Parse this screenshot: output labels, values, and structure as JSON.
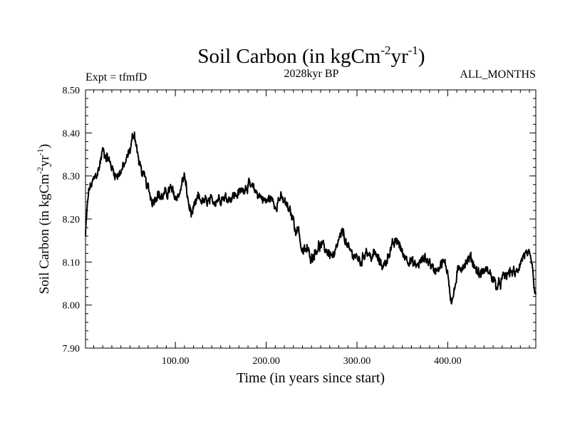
{
  "chart_data": {
    "type": "line",
    "title": "Soil Carbon (in kgCm",
    "title_sup1": "-2",
    "title_mid": "yr",
    "title_sup2": "-1",
    "title_end": ")",
    "subtitle_left": "Expt = tfmfD",
    "subtitle_center": "2028kyr BP",
    "subtitle_right": "ALL_MONTHS",
    "xlabel": "Time (in years since start)",
    "ylabel": "Soil Carbon (in kgCm",
    "ylabel_sup1": "-2",
    "ylabel_mid": "yr",
    "ylabel_sup2": "-1",
    "ylabel_end": ")",
    "xlim": [
      1,
      497
    ],
    "ylim": [
      7.9,
      8.5
    ],
    "xticks": [
      100,
      200,
      300,
      400
    ],
    "xtick_labels": [
      "100.00",
      "200.00",
      "300.00",
      "400.00"
    ],
    "yticks": [
      7.9,
      8.0,
      8.1,
      8.2,
      8.3,
      8.4,
      8.5
    ],
    "ytick_labels": [
      "7.90",
      "8.00",
      "8.10",
      "8.20",
      "8.30",
      "8.40",
      "8.50"
    ],
    "grid": false,
    "series": [
      {
        "name": "Soil Carbon",
        "x": [
          1,
          3,
          5,
          8,
          12,
          15,
          18,
          20,
          23,
          26,
          30,
          35,
          40,
          45,
          50,
          53,
          55,
          57,
          60,
          65,
          70,
          75,
          80,
          85,
          90,
          95,
          100,
          105,
          108,
          110,
          112,
          115,
          118,
          120,
          125,
          130,
          140,
          150,
          160,
          170,
          180,
          185,
          190,
          195,
          200,
          205,
          210,
          215,
          220,
          225,
          230,
          233,
          236,
          238,
          240,
          245,
          250,
          255,
          260,
          265,
          270,
          275,
          280,
          285,
          290,
          295,
          300,
          305,
          310,
          315,
          320,
          325,
          330,
          335,
          340,
          345,
          350,
          355,
          360,
          365,
          370,
          375,
          380,
          385,
          390,
          395,
          400,
          403,
          405,
          408,
          410,
          415,
          420,
          425,
          430,
          435,
          440,
          445,
          450,
          455,
          460,
          465,
          470,
          475,
          480,
          485,
          490,
          493,
          495,
          497
        ],
        "y": [
          8.16,
          8.23,
          8.27,
          8.28,
          8.3,
          8.31,
          8.34,
          8.36,
          8.35,
          8.34,
          8.32,
          8.3,
          8.31,
          8.33,
          8.36,
          8.39,
          8.4,
          8.37,
          8.33,
          8.3,
          8.27,
          8.24,
          8.26,
          8.25,
          8.26,
          8.27,
          8.25,
          8.26,
          8.29,
          8.3,
          8.27,
          8.23,
          8.21,
          8.22,
          8.25,
          8.24,
          8.24,
          8.25,
          8.25,
          8.26,
          8.28,
          8.27,
          8.26,
          8.25,
          8.24,
          8.25,
          8.23,
          8.25,
          8.24,
          8.22,
          8.2,
          8.17,
          8.18,
          8.14,
          8.12,
          8.13,
          8.11,
          8.13,
          8.14,
          8.13,
          8.12,
          8.11,
          8.15,
          8.17,
          8.13,
          8.12,
          8.11,
          8.1,
          8.13,
          8.11,
          8.12,
          8.1,
          8.09,
          8.12,
          8.14,
          8.15,
          8.12,
          8.11,
          8.1,
          8.09,
          8.1,
          8.11,
          8.1,
          8.08,
          8.09,
          8.1,
          8.08,
          8.02,
          8.01,
          8.04,
          8.07,
          8.09,
          8.1,
          8.11,
          8.09,
          8.07,
          8.08,
          8.08,
          8.06,
          8.04,
          8.06,
          8.07,
          8.08,
          8.07,
          8.1,
          8.12,
          8.11,
          8.09,
          8.04,
          8.02
        ]
      }
    ]
  }
}
